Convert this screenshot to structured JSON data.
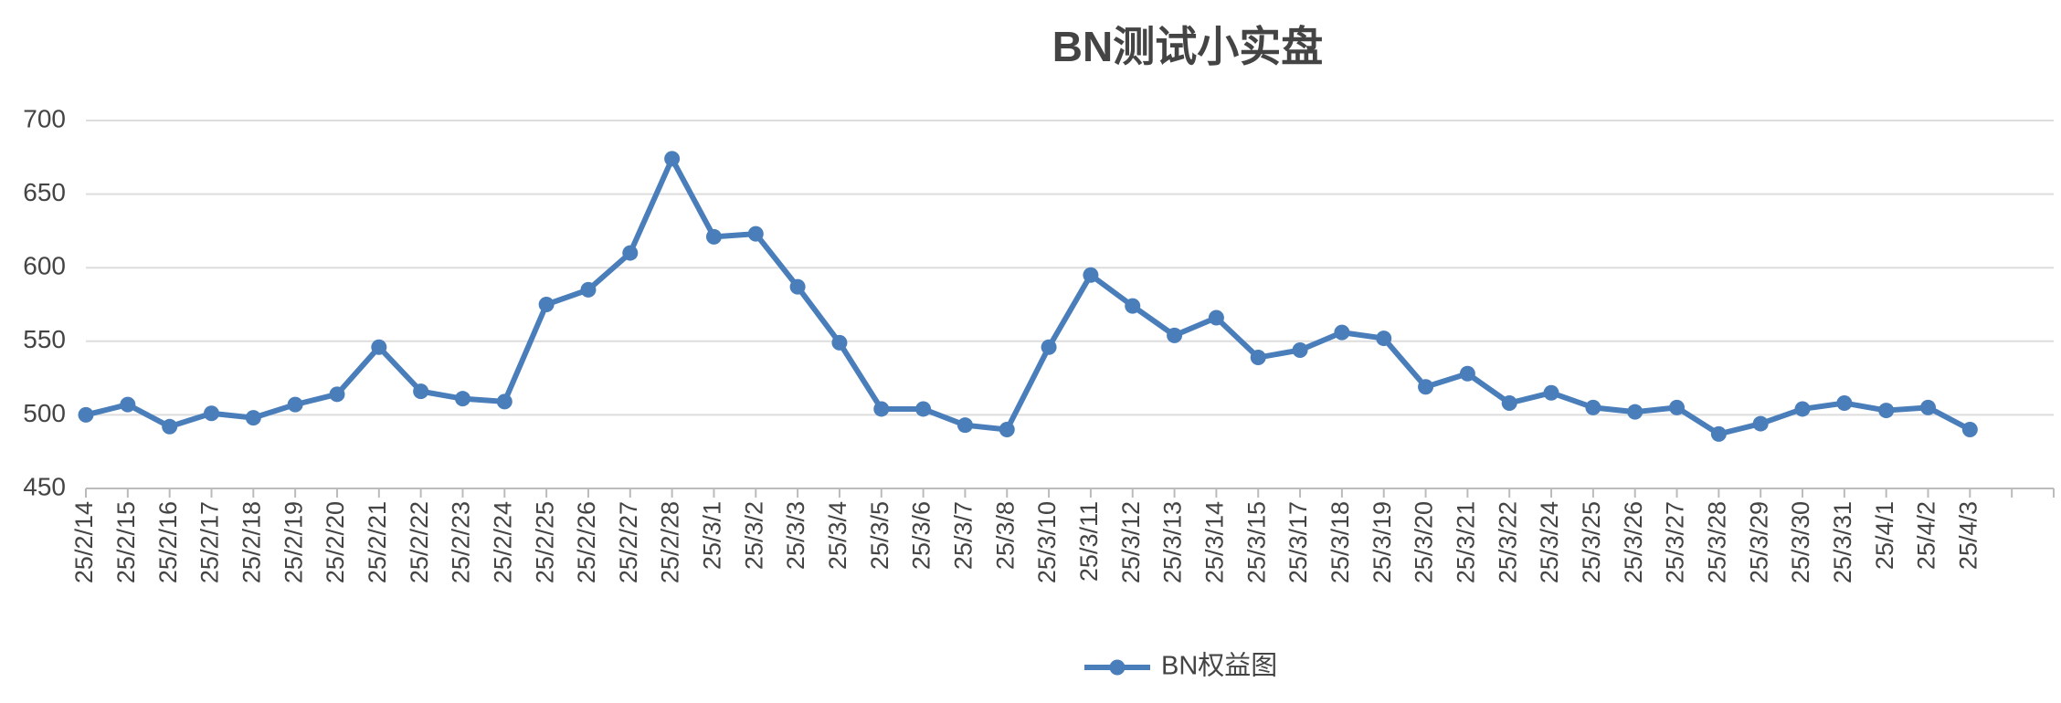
{
  "chart_data": {
    "type": "line",
    "title": "BN测试小实盘",
    "categories": [
      "25/2/14",
      "25/2/15",
      "25/2/16",
      "25/2/17",
      "25/2/18",
      "25/2/19",
      "25/2/20",
      "25/2/21",
      "25/2/22",
      "25/2/23",
      "25/2/24",
      "25/2/25",
      "25/2/26",
      "25/2/27",
      "25/2/28",
      "25/3/1",
      "25/3/2",
      "25/3/3",
      "25/3/4",
      "25/3/5",
      "25/3/6",
      "25/3/7",
      "25/3/8",
      "25/3/10",
      "25/3/11",
      "25/3/12",
      "25/3/13",
      "25/3/14",
      "25/3/15",
      "25/3/17",
      "25/3/18",
      "25/3/19",
      "25/3/20",
      "25/3/21",
      "25/3/22",
      "25/3/24",
      "25/3/25",
      "25/3/26",
      "25/3/27",
      "25/3/28",
      "25/3/29",
      "25/3/30",
      "25/3/31",
      "25/4/1",
      "25/4/2",
      "25/4/3",
      null,
      null
    ],
    "series": [
      {
        "name": "BN权益图",
        "color": "#4a7ebb",
        "values": [
          500,
          507,
          492,
          501,
          498,
          507,
          514,
          546,
          516,
          511,
          509,
          575,
          585,
          610,
          674,
          621,
          623,
          587,
          549,
          504,
          504,
          493,
          490,
          546,
          595,
          574,
          554,
          566,
          539,
          544,
          556,
          552,
          519,
          528,
          508,
          515,
          505,
          502,
          505,
          487,
          494,
          504,
          508,
          503,
          505,
          490,
          null,
          null
        ]
      }
    ],
    "ylim": [
      450,
      700
    ],
    "yticks": [
      450,
      500,
      550,
      600,
      650,
      700
    ],
    "grid": true,
    "legend": "bottom"
  }
}
